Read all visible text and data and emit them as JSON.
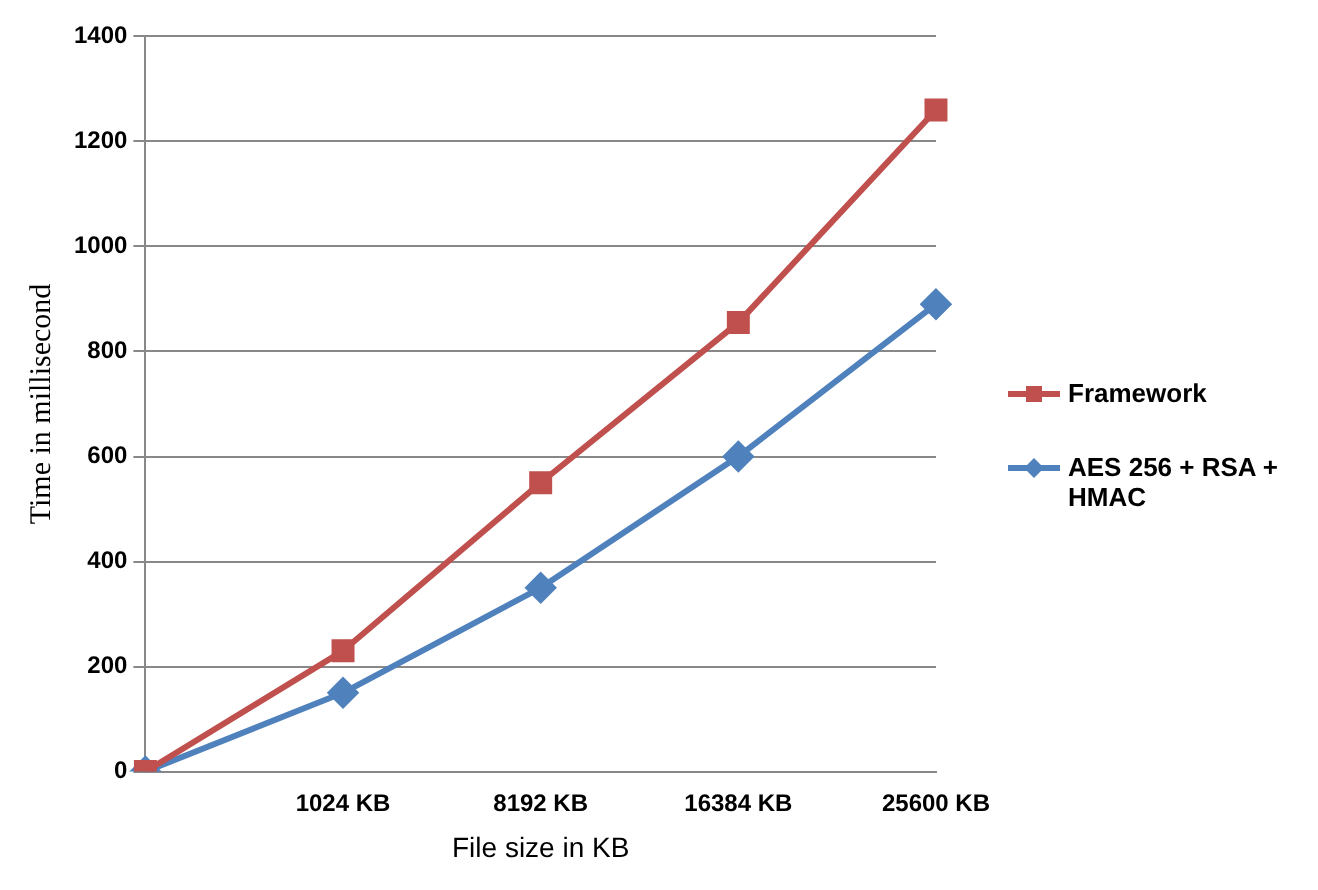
{
  "chart_data": {
    "type": "line",
    "xlabel": "File size in KB",
    "ylabel": "Time in millisecond",
    "categories": [
      null,
      "1024 KB",
      "8192 KB",
      "16384 KB",
      "25600 KB"
    ],
    "series": [
      {
        "name": "Framework",
        "color": "#c0504d",
        "marker": "square",
        "values": [
          0,
          230,
          550,
          855,
          1260
        ]
      },
      {
        "name": "AES 256 + RSA + HMAC",
        "color": "#4f81bd",
        "marker": "diamond",
        "values": [
          0,
          150,
          350,
          600,
          890
        ]
      }
    ],
    "ylim": [
      0,
      1400
    ],
    "yticks": [
      0,
      200,
      400,
      600,
      800,
      1000,
      1200,
      1400
    ],
    "grid": "y",
    "legend": "right"
  }
}
